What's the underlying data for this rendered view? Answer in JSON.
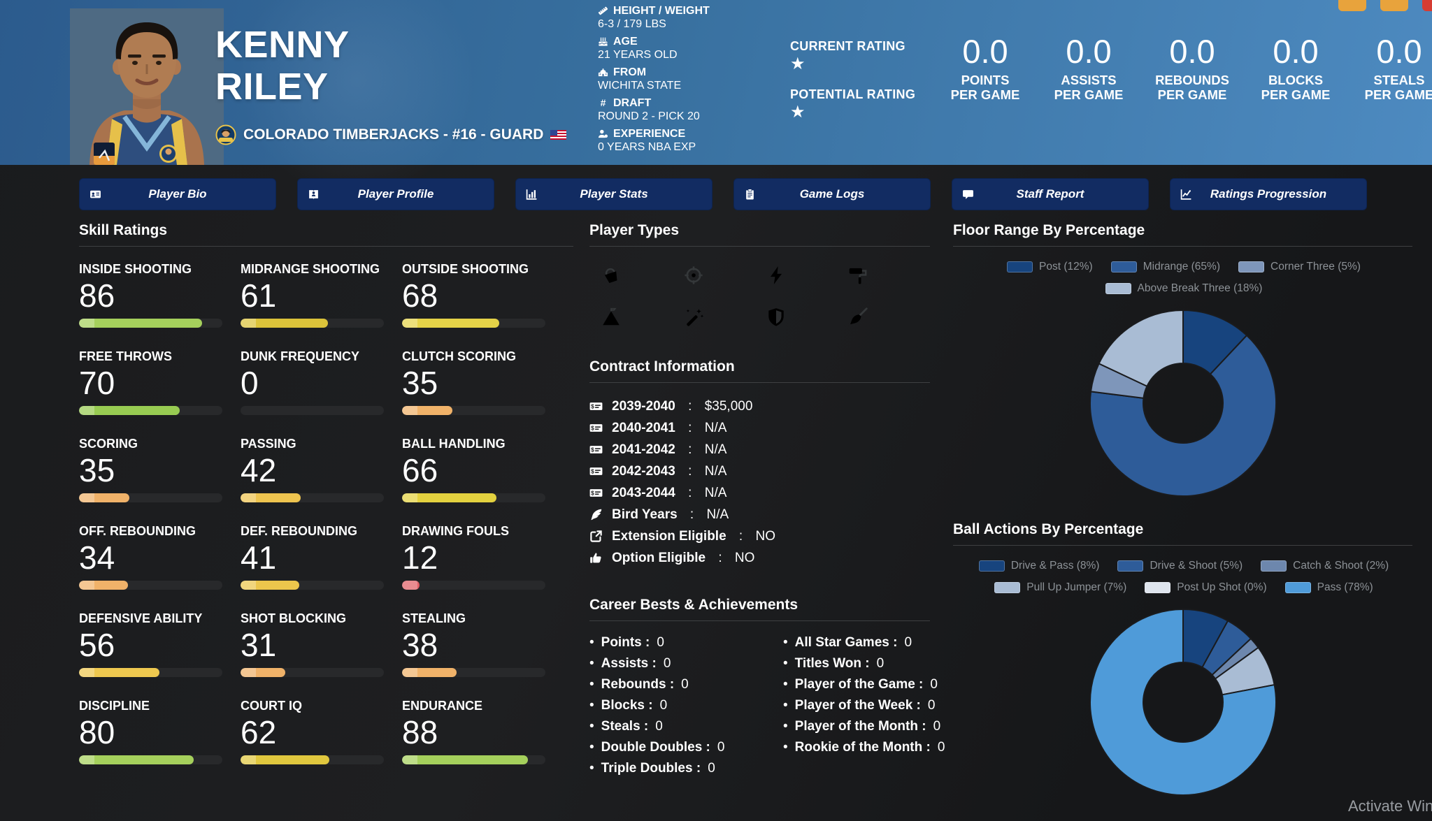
{
  "header": {
    "first_name": "KENNY",
    "last_name": "RILEY",
    "team_line": "COLORADO TIMBERJACKS - #16 - GUARD",
    "team_logo_icon": "team-logo-icon",
    "flag_icon": "us-flag-icon",
    "info": [
      {
        "icon": "ruler-icon",
        "label": "HEIGHT / WEIGHT",
        "value": "6-3 / 179 LBS"
      },
      {
        "icon": "cake-icon",
        "label": "AGE",
        "value": "21 YEARS OLD"
      },
      {
        "icon": "school-icon",
        "label": "FROM",
        "value": "WICHITA STATE"
      },
      {
        "icon": "hashtag-icon",
        "label": "DRAFT",
        "value": "ROUND 2 - PICK 20"
      },
      {
        "icon": "user-icon",
        "label": "EXPERIENCE",
        "value": "0 YEARS NBA EXP"
      }
    ],
    "ratings": [
      {
        "label": "CURRENT RATING",
        "stars": 1
      },
      {
        "label": "POTENTIAL RATING",
        "stars": 1
      }
    ],
    "per_game_stats": [
      {
        "value": "0.0",
        "stat": "POINTS",
        "suffix": "PER GAME"
      },
      {
        "value": "0.0",
        "stat": "ASSISTS",
        "suffix": "PER GAME"
      },
      {
        "value": "0.0",
        "stat": "REBOUNDS",
        "suffix": "PER GAME"
      },
      {
        "value": "0.0",
        "stat": "BLOCKS",
        "suffix": "PER GAME"
      },
      {
        "value": "0.0",
        "stat": "STEALS",
        "suffix": "PER GAME"
      }
    ],
    "window_buttons": [
      {
        "name": "window-button-1",
        "color": "#e8a33c"
      },
      {
        "name": "window-button-2",
        "color": "#e8a33c"
      },
      {
        "name": "window-button-3",
        "color": "#d63c33"
      }
    ]
  },
  "tabs": [
    {
      "label": "Player Bio",
      "icon": "id-card-icon"
    },
    {
      "label": "Player Profile",
      "icon": "book-user-icon"
    },
    {
      "label": "Player Stats",
      "icon": "chart-column-icon"
    },
    {
      "label": "Game Logs",
      "icon": "clipboard-icon"
    },
    {
      "label": "Staff Report",
      "icon": "comment-icon"
    },
    {
      "label": "Ratings Progression",
      "icon": "chart-line-icon"
    }
  ],
  "skills": {
    "title": "Skill Ratings",
    "items": [
      {
        "label": "INSIDE SHOOTING",
        "value": 86,
        "color": "#a5d05c"
      },
      {
        "label": "MIDRANGE SHOOTING",
        "value": 61,
        "color": "#dcc33a"
      },
      {
        "label": "OUTSIDE SHOOTING",
        "value": 68,
        "color": "#e5d348"
      },
      {
        "label": "FREE THROWS",
        "value": 70,
        "color": "#98cb52"
      },
      {
        "label": "DUNK FREQUENCY",
        "value": 0,
        "color": "#28292b"
      },
      {
        "label": "CLUTCH SCORING",
        "value": 35,
        "color": "#f0b269"
      },
      {
        "label": "SCORING",
        "value": 35,
        "color": "#f0b269"
      },
      {
        "label": "PASSING",
        "value": 42,
        "color": "#eec44f"
      },
      {
        "label": "BALL HANDLING",
        "value": 66,
        "color": "#e3d13f"
      },
      {
        "label": "OFF. REBOUNDING",
        "value": 34,
        "color": "#f0b269"
      },
      {
        "label": "DEF. REBOUNDING",
        "value": 41,
        "color": "#ecc64c"
      },
      {
        "label": "DRAWING FOULS",
        "value": 12,
        "color": "#e05f66"
      },
      {
        "label": "DEFENSIVE ABILITY",
        "value": 56,
        "color": "#eec84f"
      },
      {
        "label": "SHOT BLOCKING",
        "value": 31,
        "color": "#f0b269"
      },
      {
        "label": "STEALING",
        "value": 38,
        "color": "#f0b269"
      },
      {
        "label": "DISCIPLINE",
        "value": 80,
        "color": "#a5d05c"
      },
      {
        "label": "COURT IQ",
        "value": 62,
        "color": "#e0c73e"
      },
      {
        "label": "ENDURANCE",
        "value": 88,
        "color": "#a5d05c"
      }
    ]
  },
  "player_types": {
    "title": "Player Types",
    "icons": [
      "dunk-icon",
      "target-icon",
      "bolt-icon",
      "paint-roller-icon",
      "mountain-icon",
      "wand-icon",
      "shield-icon",
      "broom-icon"
    ]
  },
  "contract": {
    "title": "Contract Information",
    "items": [
      {
        "icon": "money-check-icon",
        "label": "2039-2040",
        "value": "$35,000"
      },
      {
        "icon": "money-check-icon",
        "label": "2040-2041",
        "value": "N/A"
      },
      {
        "icon": "money-check-icon",
        "label": "2041-2042",
        "value": "N/A"
      },
      {
        "icon": "money-check-icon",
        "label": "2042-2043",
        "value": "N/A"
      },
      {
        "icon": "money-check-icon",
        "label": "2043-2044",
        "value": "N/A"
      },
      {
        "icon": "feather-icon",
        "label": "Bird Years",
        "value": "N/A"
      },
      {
        "icon": "external-link-icon",
        "label": "Extension Eligible",
        "value": "NO"
      },
      {
        "icon": "thumbs-up-icon",
        "label": "Option Eligible",
        "value": "NO"
      }
    ]
  },
  "career": {
    "title": "Career Bests & Achievements",
    "left": [
      {
        "label": "Points",
        "value": "0"
      },
      {
        "label": "Assists",
        "value": "0"
      },
      {
        "label": "Rebounds",
        "value": "0"
      },
      {
        "label": "Blocks",
        "value": "0"
      },
      {
        "label": "Steals",
        "value": "0"
      },
      {
        "label": "Double Doubles",
        "value": "0"
      },
      {
        "label": "Triple Doubles",
        "value": "0"
      }
    ],
    "right": [
      {
        "label": "All Star Games",
        "value": "0"
      },
      {
        "label": "Titles Won",
        "value": "0"
      },
      {
        "label": "Player of the Game",
        "value": "0"
      },
      {
        "label": "Player of the Week",
        "value": "0"
      },
      {
        "label": "Player of the Month",
        "value": "0"
      },
      {
        "label": "Rookie of the Month",
        "value": "0"
      }
    ]
  },
  "chart_data": [
    {
      "type": "pie",
      "donut": true,
      "title": "Floor Range By Percentage",
      "categories": [
        "Post",
        "Midrange",
        "Corner Three",
        "Above Break Three"
      ],
      "values": [
        12,
        65,
        5,
        18
      ],
      "colors": [
        "#17447e",
        "#2e5c99",
        "#7e96ba",
        "#a9bcd4"
      ],
      "legend_position": "top"
    },
    {
      "type": "pie",
      "donut": true,
      "title": "Ball Actions By Percentage",
      "categories": [
        "Drive & Pass",
        "Drive & Shoot",
        "Catch & Shoot",
        "Pull Up Jumper",
        "Post Up Shot",
        "Pass"
      ],
      "values": [
        8,
        5,
        2,
        7,
        0,
        78
      ],
      "colors": [
        "#17447e",
        "#2e5c99",
        "#6d87ad",
        "#a9bcd4",
        "#dfe5ee",
        "#4f9bd9"
      ],
      "legend_position": "top"
    }
  ],
  "watermark": {
    "text": "Activate Windows"
  }
}
